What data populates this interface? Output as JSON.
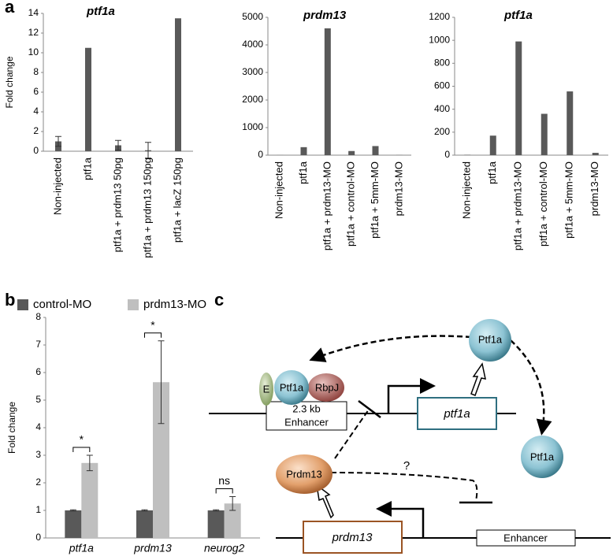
{
  "chart_data": [
    {
      "type": "bar",
      "title": "ptf1a",
      "y_label": "Fold change",
      "categories": [
        "Non-injected",
        "ptf1a",
        "ptf1a + prdm13 50pg",
        "ptf1a + prdm13 150pg",
        "ptf1a + lacZ 150pg"
      ],
      "values": [
        1.0,
        10.5,
        0.6,
        0.1,
        13.5
      ],
      "errors": [
        0.5,
        0,
        0.5,
        0.8,
        0
      ],
      "color": "#595959",
      "ylim": [
        0,
        14
      ],
      "yticks": [
        0,
        2,
        4,
        6,
        8,
        10,
        12,
        14
      ]
    },
    {
      "type": "bar",
      "title": "prdm13",
      "categories": [
        "Non-injected",
        "ptf1a",
        "ptf1a + prdm13-MO",
        "ptf1a + control-MO",
        "ptf1a + 5mm-MO",
        "prdm13-MO"
      ],
      "values": [
        2,
        290,
        4600,
        150,
        330,
        5
      ],
      "color": "#595959",
      "ylim": [
        0,
        5000
      ],
      "yticks": [
        0,
        1000,
        2000,
        3000,
        4000,
        5000
      ]
    },
    {
      "type": "bar",
      "title": "ptf1a",
      "categories": [
        "Non-injected",
        "ptf1a",
        "ptf1a + prdm13-MO",
        "ptf1a + control-MO",
        "ptf1a + 5mm-MO",
        "prdm13-MO"
      ],
      "values": [
        3,
        170,
        990,
        360,
        555,
        20
      ],
      "color": "#595959",
      "ylim": [
        0,
        1200
      ],
      "yticks": [
        0,
        200,
        400,
        600,
        800,
        1000,
        1200
      ]
    },
    {
      "type": "grouped_bar",
      "y_label": "Fold change",
      "categories": [
        "ptf1a",
        "prdm13",
        "neurog2"
      ],
      "series": [
        {
          "name": "control-MO",
          "color": "#595959",
          "values": [
            1,
            1,
            1
          ],
          "errors": [
            0.02,
            0.02,
            0.02
          ]
        },
        {
          "name": "prdm13-MO",
          "color": "#bfbfbf",
          "values": [
            2.72,
            5.65,
            1.25
          ],
          "errors": [
            0.28,
            1.5,
            0.25
          ]
        }
      ],
      "annotations": [
        "*",
        "*",
        "ns"
      ],
      "ylim": [
        0,
        8
      ],
      "yticks": [
        0,
        1,
        2,
        3,
        4,
        5,
        6,
        7,
        8
      ],
      "legend": "top"
    }
  ],
  "panels": [
    "a",
    "b",
    "c"
  ],
  "diagram": {
    "ptf1a_top": "Ptf1a",
    "e": "E",
    "ptf1a_complex": "Ptf1a",
    "rbpj": "RbpJ",
    "enhancer_size": "2.3 kb",
    "enhancer_top": "Enhancer",
    "ptf1a_gene": "ptf1a",
    "prdm13_protein": "Prdm13",
    "question": "?",
    "ptf1a_bottom": "Ptf1a",
    "prdm13_gene": "prdm13",
    "enhancer_bottom": "Enhancer"
  }
}
